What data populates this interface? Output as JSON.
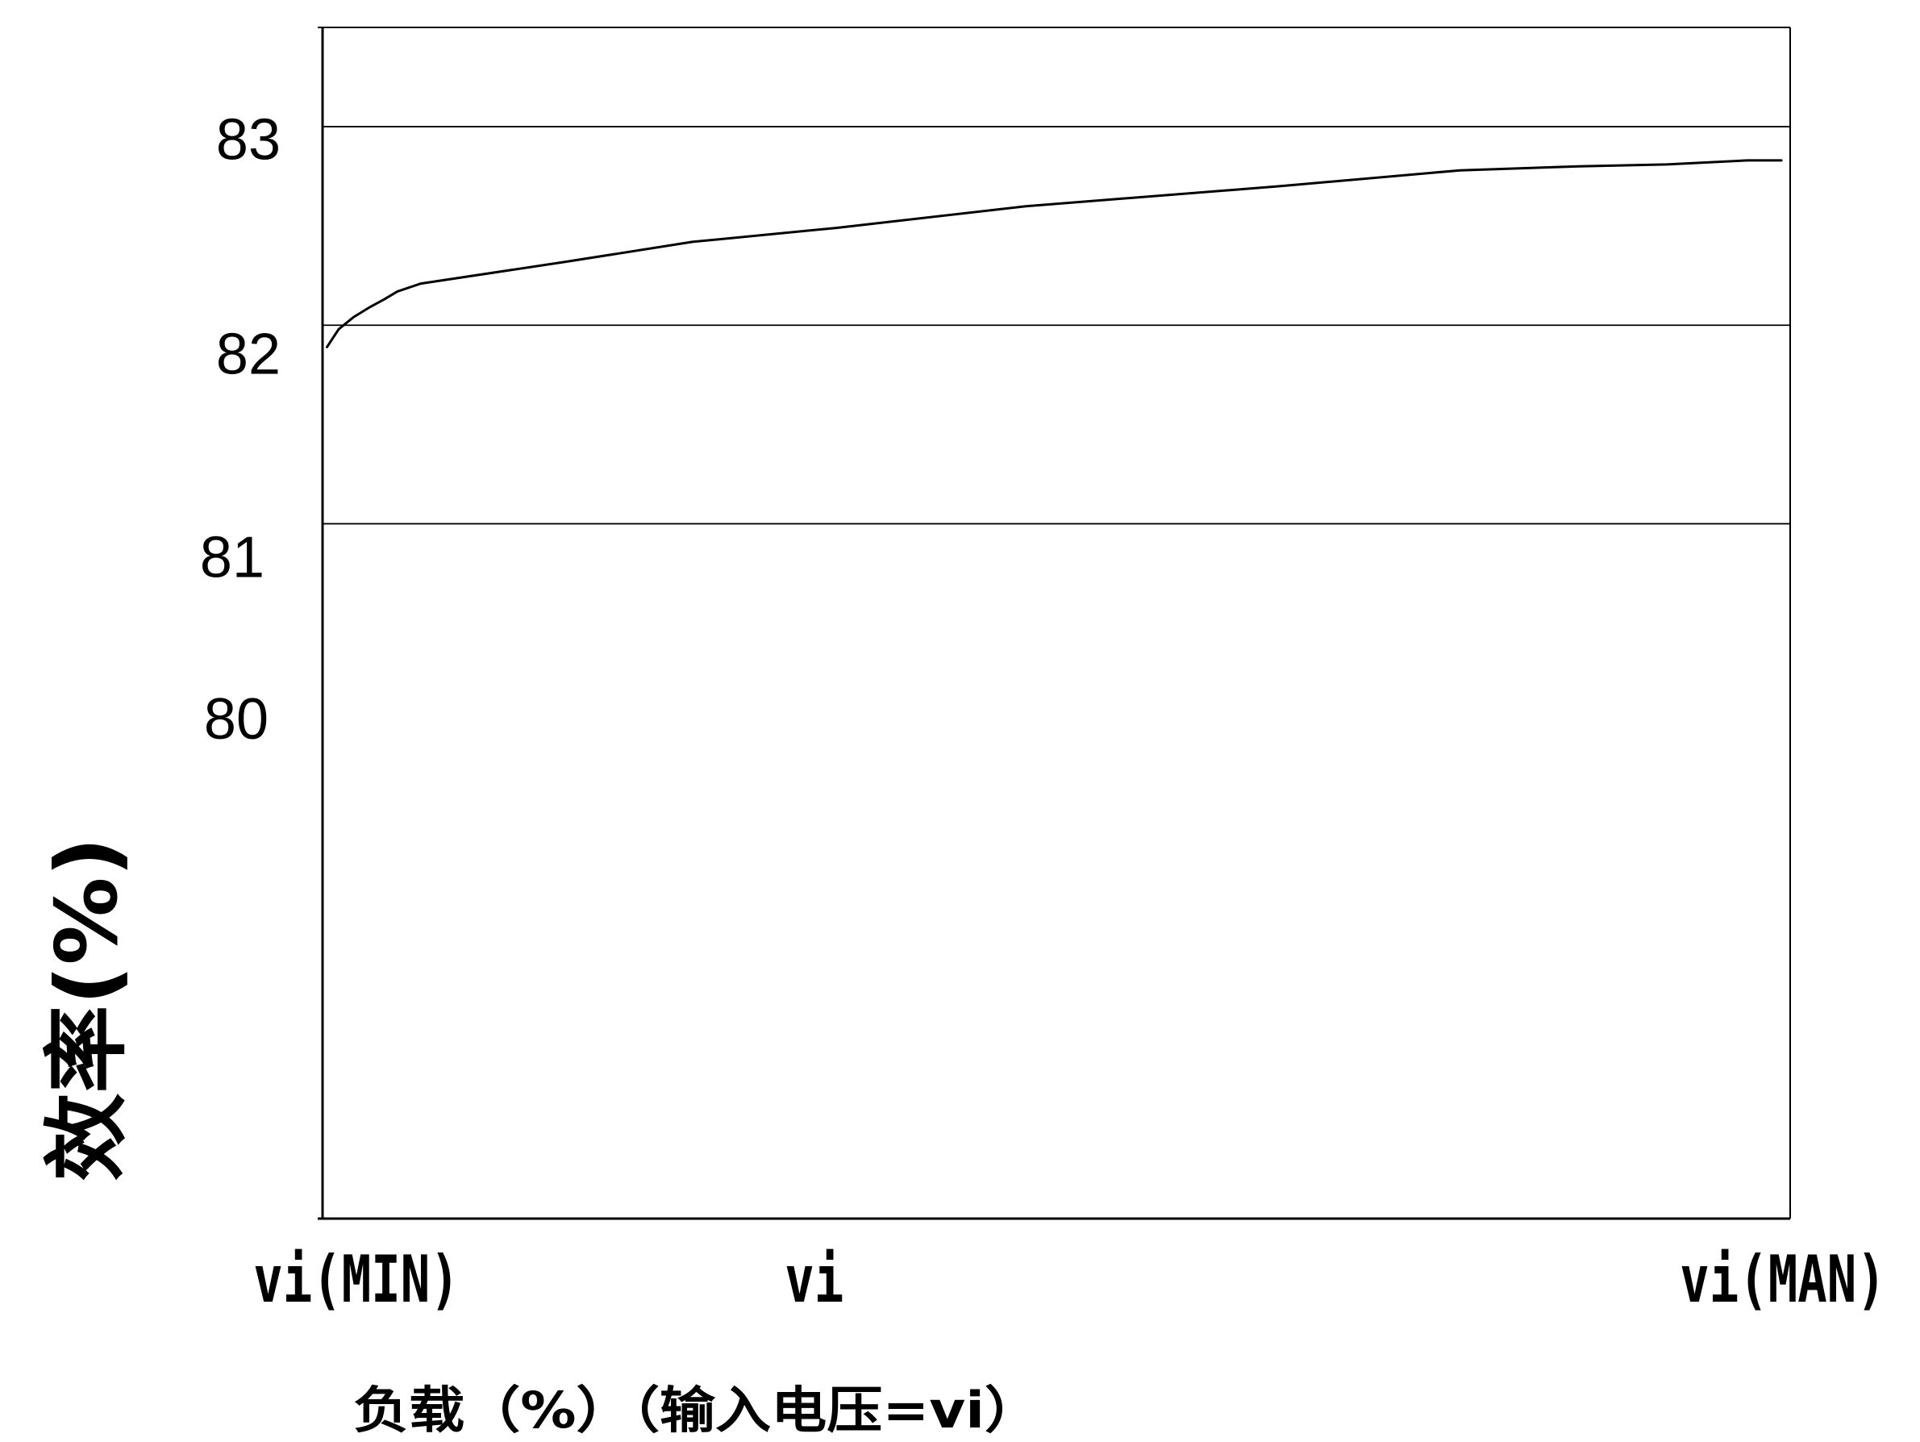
{
  "chart_data": {
    "type": "line",
    "title": "",
    "xlabel": "负载（%）（输入电压=vi）",
    "ylabel": "效率(%)",
    "xlim": [
      0,
      100
    ],
    "ylim": [
      77.5,
      83.5
    ],
    "x_ticks": [
      {
        "value": 0,
        "label": "vi(MIN)"
      },
      {
        "value": 33.5,
        "label": "vi"
      },
      {
        "value": 100,
        "label": "vi(MAN)"
      }
    ],
    "y_ticks": [
      83,
      82,
      81,
      80
    ],
    "grid_y": [
      83,
      82,
      81
    ],
    "grid": true,
    "legend": "none",
    "line_color": "#000000",
    "series": [
      {
        "x": [
          0.3,
          1.1,
          2.1,
          3.2,
          4.2,
          5.1,
          6.7,
          16.6,
          25.2,
          35.0,
          48.0,
          65.2,
          77.5,
          85.6,
          91.6,
          97.1,
          99.4
        ],
        "y": [
          81.89,
          81.98,
          82.04,
          82.09,
          82.13,
          82.17,
          82.21,
          82.32,
          82.42,
          82.49,
          82.6,
          82.7,
          82.78,
          82.8,
          82.81,
          82.83,
          82.83
        ]
      }
    ]
  }
}
